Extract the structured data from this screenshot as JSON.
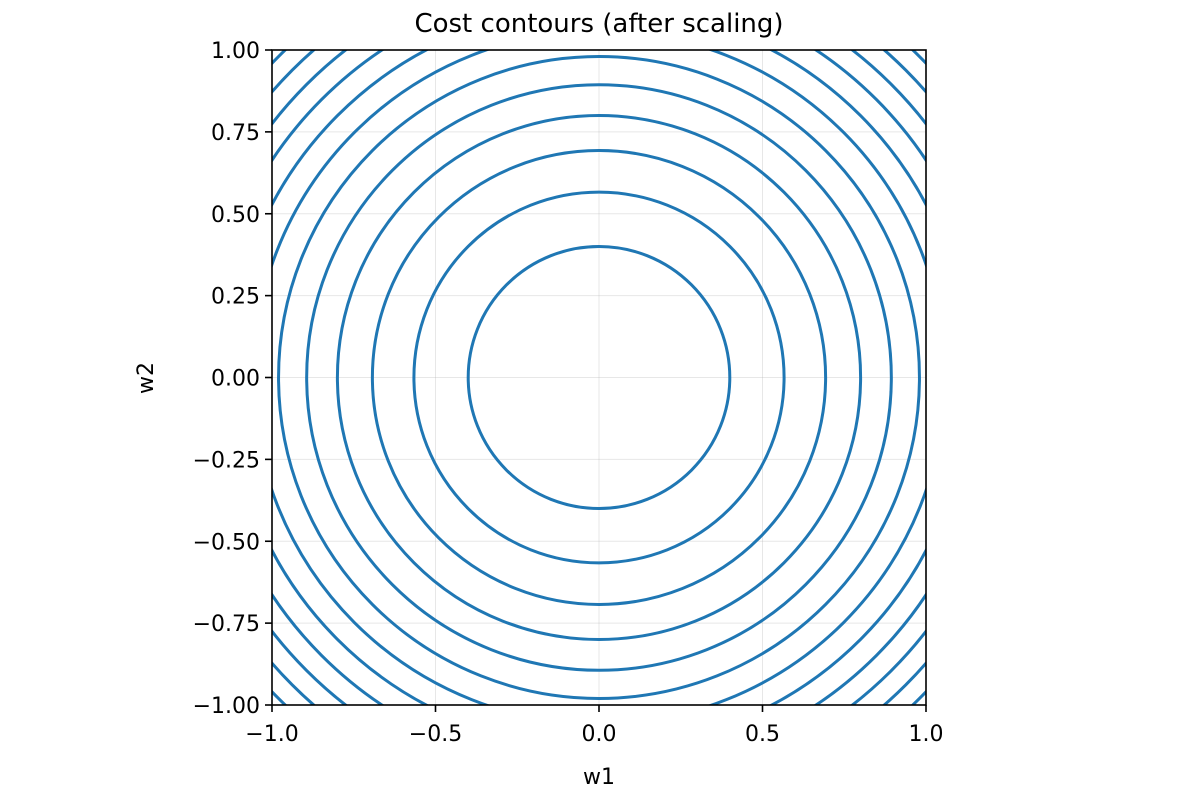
{
  "chart_data": {
    "type": "contour",
    "title": "Cost contours (after scaling)",
    "xlabel": "w1",
    "ylabel": "w2",
    "xlim": [
      -1.0,
      1.0
    ],
    "ylim": [
      -1.0,
      1.0
    ],
    "grid": true,
    "aspect": "equal",
    "x_ticks": [
      -1.0,
      -0.5,
      0.0,
      0.5,
      1.0
    ],
    "x_tick_labels": [
      "−1.0",
      "−0.5",
      "0.0",
      "0.5",
      "1.0"
    ],
    "y_ticks": [
      1.0,
      0.75,
      0.5,
      0.25,
      0.0,
      -0.25,
      -0.5,
      -0.75,
      -1.0
    ],
    "y_tick_labels": [
      "1.00",
      "0.75",
      "0.50",
      "0.25",
      "0.00",
      "−0.25",
      "−0.50",
      "−0.75",
      "−1.00"
    ],
    "contour_color": "#1f77b4",
    "contour_radii": [
      0.4,
      0.566,
      0.693,
      0.8,
      0.894,
      0.98,
      1.058,
      1.131,
      1.2,
      1.265,
      1.327,
      1.386
    ]
  }
}
